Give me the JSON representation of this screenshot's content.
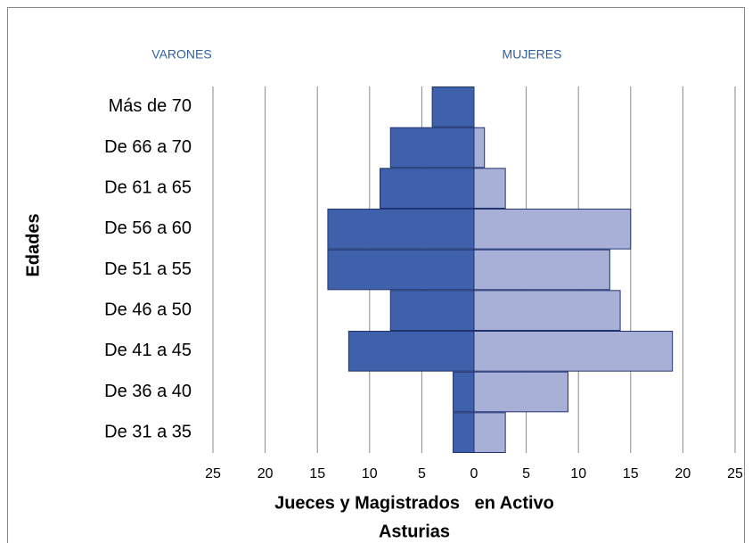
{
  "chart_data": {
    "type": "pyramid",
    "ylabel": "Edades",
    "xlabel": [
      "Jueces y Magistrados   en Activo",
      "Asturias"
    ],
    "categories": [
      "De 31 a 35",
      "De 36 a 40",
      "De 41 a 45",
      "De 46 a 50",
      "De 51 a 55",
      "De 56 a 60",
      "De 61 a 65",
      "De 66 a 70",
      "Más de 70"
    ],
    "series": [
      {
        "name": "VARONES",
        "color": "#3f60aa",
        "side": "left",
        "values": [
          2,
          2,
          12,
          8,
          14,
          14,
          9,
          8,
          4
        ]
      },
      {
        "name": "MUJERES",
        "color": "#a8b0d8",
        "side": "right",
        "values": [
          3,
          9,
          19,
          14,
          13,
          15,
          3,
          1,
          0
        ]
      }
    ],
    "xlim": [
      -25,
      25
    ],
    "xticks": [
      {
        "value": -25,
        "label": "25"
      },
      {
        "value": -20,
        "label": "20"
      },
      {
        "value": -15,
        "label": "15"
      },
      {
        "value": -10,
        "label": "10"
      },
      {
        "value": -5,
        "label": "5"
      },
      0,
      5,
      10,
      15,
      20,
      25
    ],
    "grid": true
  }
}
